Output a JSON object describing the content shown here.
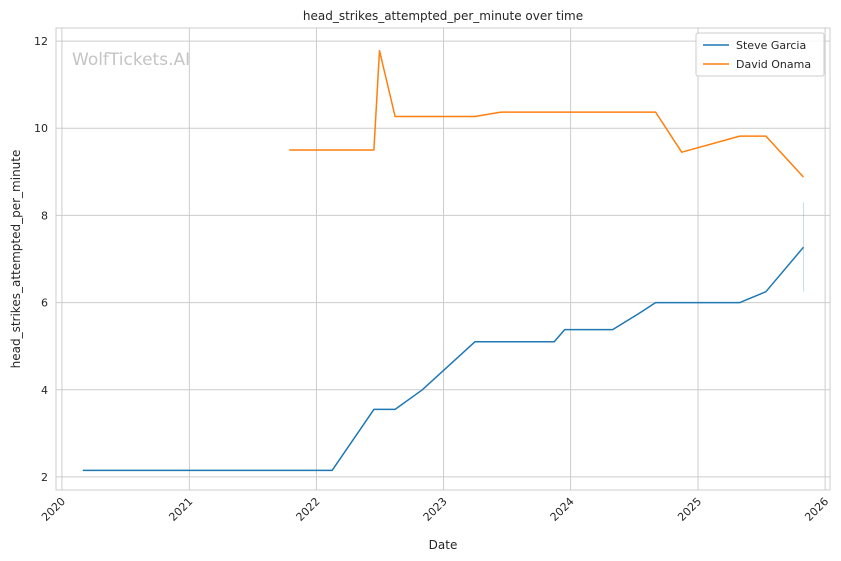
{
  "chart_data": {
    "type": "line",
    "title": "head_strikes_attempted_per_minute over time",
    "xlabel": "Date",
    "ylabel": "head_strikes_attempted_per_minute",
    "watermark": "WolfTickets.AI",
    "xlim": [
      "2019-12-15",
      "2026-01-15"
    ],
    "ylim": [
      1.7,
      12.3
    ],
    "x_ticks": [
      "2020-01-01",
      "2021-01-01",
      "2022-01-01",
      "2023-01-01",
      "2024-01-01",
      "2025-01-01",
      "2026-01-01"
    ],
    "x_tick_labels": [
      "2020",
      "2021",
      "2022",
      "2023",
      "2024",
      "2025",
      "2026"
    ],
    "y_ticks": [
      2,
      4,
      6,
      8,
      10,
      12
    ],
    "y_tick_labels": [
      "2",
      "4",
      "6",
      "8",
      "10",
      "12"
    ],
    "grid": true,
    "legend_position": "top-right",
    "series": [
      {
        "name": "Steve Garcia",
        "color": "#1f77b4",
        "points": [
          [
            "2020-03-01",
            2.15
          ],
          [
            "2022-02-15",
            2.15
          ],
          [
            "2022-06-15",
            3.55
          ],
          [
            "2022-08-15",
            3.55
          ],
          [
            "2022-11-01",
            4.0
          ],
          [
            "2023-04-01",
            5.1
          ],
          [
            "2023-11-15",
            5.1
          ],
          [
            "2023-12-15",
            5.38
          ],
          [
            "2024-05-01",
            5.38
          ],
          [
            "2024-07-15",
            5.75
          ],
          [
            "2024-09-01",
            6.0
          ],
          [
            "2025-05-01",
            6.0
          ],
          [
            "2025-07-15",
            6.25
          ],
          [
            "2025-10-31",
            7.27
          ]
        ],
        "error_bar": {
          "x": "2025-10-31",
          "low": 6.25,
          "high": 8.3
        }
      },
      {
        "name": "David Onama",
        "color": "#ff7f0e",
        "points": [
          [
            "2021-10-15",
            9.5
          ],
          [
            "2022-06-15",
            9.5
          ],
          [
            "2022-07-01",
            11.78
          ],
          [
            "2022-08-15",
            10.27
          ],
          [
            "2023-04-01",
            10.27
          ],
          [
            "2023-06-15",
            10.37
          ],
          [
            "2024-09-01",
            10.37
          ],
          [
            "2024-11-15",
            9.45
          ],
          [
            "2025-05-01",
            9.82
          ],
          [
            "2025-07-15",
            9.82
          ],
          [
            "2025-10-31",
            8.88
          ]
        ]
      }
    ]
  }
}
